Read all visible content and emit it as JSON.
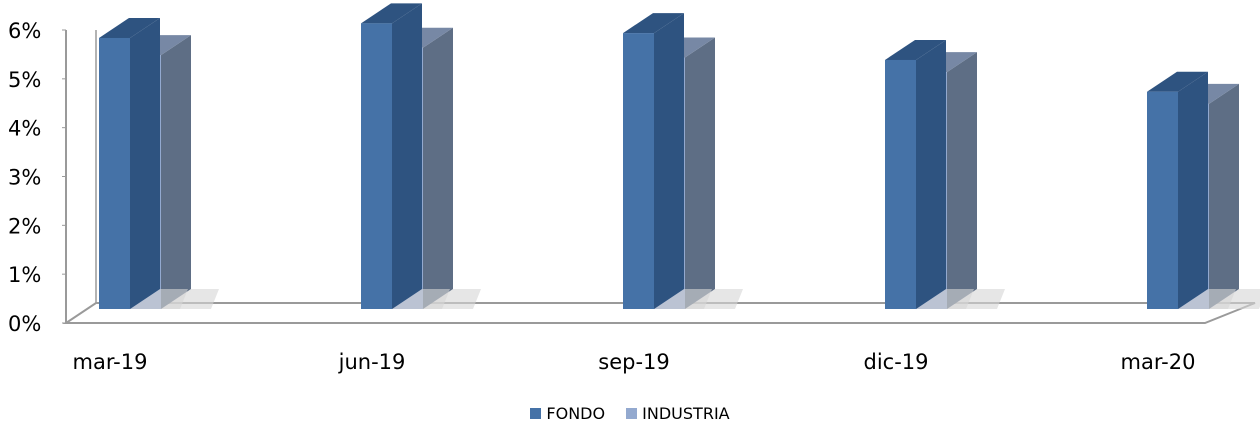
{
  "chart_data": {
    "type": "bar",
    "categories": [
      "mar-19",
      "jun-19",
      "sep-19",
      "dic-19",
      "mar-20"
    ],
    "series": [
      {
        "name": "FONDO",
        "values": [
          5.55,
          5.85,
          5.65,
          5.1,
          4.45
        ],
        "color": "#4572a7",
        "side_color": "#2e5380",
        "top_color": "#2e5380"
      },
      {
        "name": "INDUSTRIA",
        "values": [
          5.2,
          5.35,
          5.15,
          4.85,
          4.2
        ],
        "color": "#93a9cf",
        "side_color": "#5e6e85",
        "top_color": "#7788a5"
      }
    ],
    "yticks": [
      "0%",
      "1%",
      "2%",
      "3%",
      "4%",
      "5%",
      "6%"
    ],
    "ylim": [
      0,
      6
    ],
    "legend_position": "bottom",
    "grid": false,
    "style": "3d-clustered-column"
  }
}
